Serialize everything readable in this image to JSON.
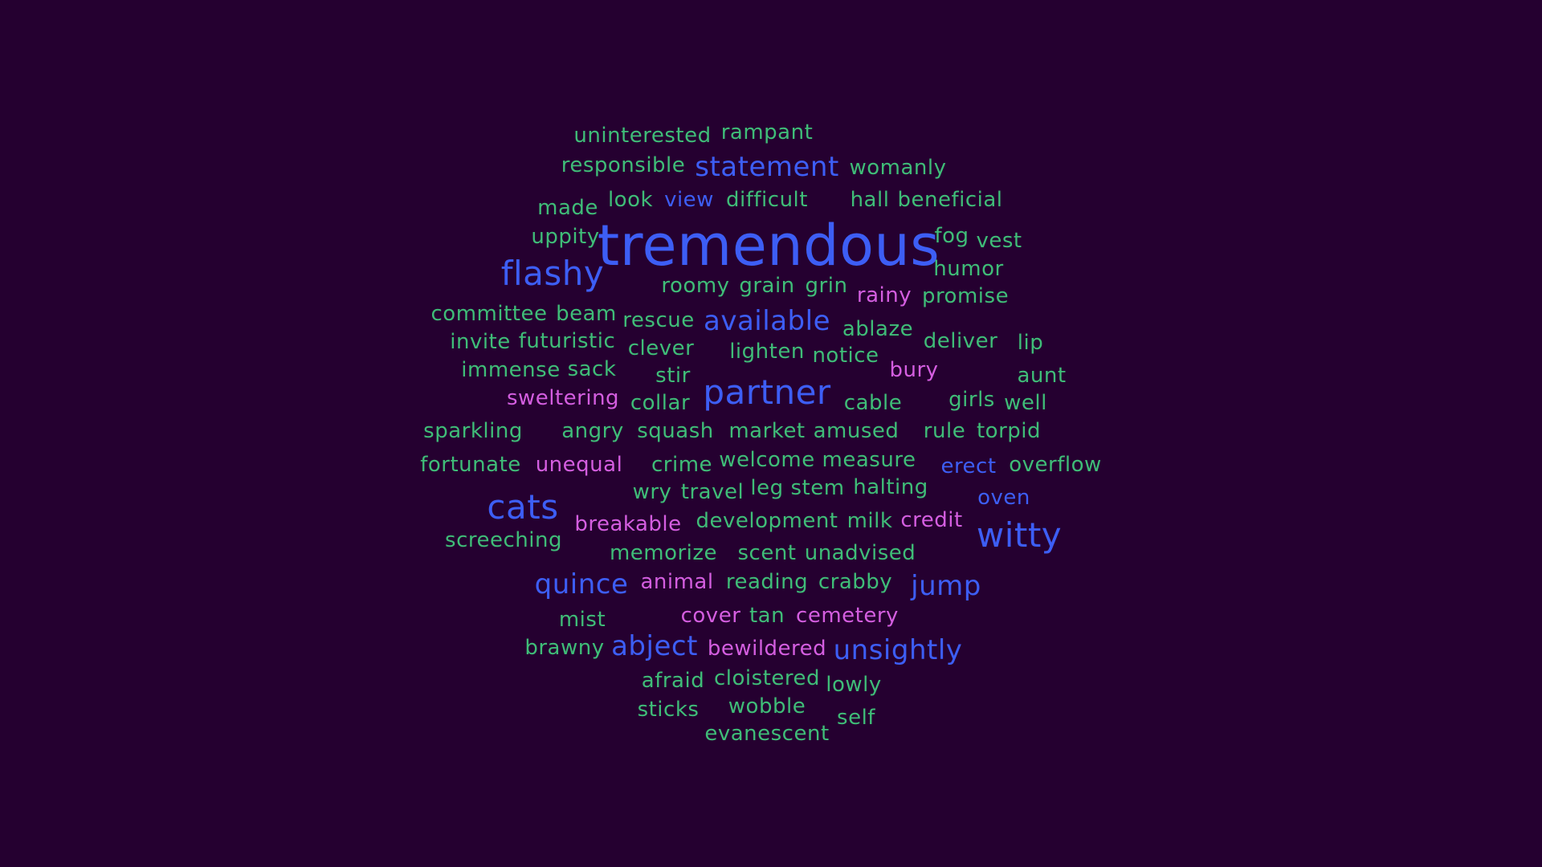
{
  "colors": {
    "background": "#250030",
    "green": "#3fbd78",
    "blue": "#3d5ef5",
    "pink": "#d45ee0"
  },
  "words": [
    {
      "text": "uninterested",
      "color": "green",
      "weight": 2
    },
    {
      "text": "rampant",
      "color": "green",
      "weight": 2
    },
    {
      "text": "responsible",
      "color": "green",
      "weight": 2
    },
    {
      "text": "statement",
      "color": "blue",
      "weight": 3
    },
    {
      "text": "womanly",
      "color": "green",
      "weight": 2
    },
    {
      "text": "made",
      "color": "green",
      "weight": 2
    },
    {
      "text": "look",
      "color": "green",
      "weight": 2
    },
    {
      "text": "view",
      "color": "blue",
      "weight": 2
    },
    {
      "text": "difficult",
      "color": "green",
      "weight": 2
    },
    {
      "text": "hall",
      "color": "green",
      "weight": 2
    },
    {
      "text": "beneficial",
      "color": "green",
      "weight": 2
    },
    {
      "text": "uppity",
      "color": "green",
      "weight": 2
    },
    {
      "text": "tremendous",
      "color": "blue",
      "weight": 6
    },
    {
      "text": "fog",
      "color": "green",
      "weight": 2
    },
    {
      "text": "vest",
      "color": "green",
      "weight": 2
    },
    {
      "text": "flashy",
      "color": "blue",
      "weight": 4
    },
    {
      "text": "humor",
      "color": "green",
      "weight": 2
    },
    {
      "text": "roomy",
      "color": "green",
      "weight": 2
    },
    {
      "text": "grain",
      "color": "green",
      "weight": 2
    },
    {
      "text": "grin",
      "color": "green",
      "weight": 2
    },
    {
      "text": "rainy",
      "color": "pink",
      "weight": 2
    },
    {
      "text": "promise",
      "color": "green",
      "weight": 2
    },
    {
      "text": "committee",
      "color": "green",
      "weight": 2
    },
    {
      "text": "beam",
      "color": "green",
      "weight": 2
    },
    {
      "text": "rescue",
      "color": "green",
      "weight": 2
    },
    {
      "text": "available",
      "color": "blue",
      "weight": 3
    },
    {
      "text": "ablaze",
      "color": "green",
      "weight": 2
    },
    {
      "text": "deliver",
      "color": "green",
      "weight": 2
    },
    {
      "text": "lip",
      "color": "green",
      "weight": 2
    },
    {
      "text": "invite",
      "color": "green",
      "weight": 2
    },
    {
      "text": "futuristic",
      "color": "green",
      "weight": 2
    },
    {
      "text": "clever",
      "color": "green",
      "weight": 2
    },
    {
      "text": "lighten",
      "color": "green",
      "weight": 2
    },
    {
      "text": "notice",
      "color": "green",
      "weight": 2
    },
    {
      "text": "bury",
      "color": "pink",
      "weight": 2
    },
    {
      "text": "aunt",
      "color": "green",
      "weight": 2
    },
    {
      "text": "immense",
      "color": "green",
      "weight": 2
    },
    {
      "text": "sack",
      "color": "green",
      "weight": 2
    },
    {
      "text": "stir",
      "color": "green",
      "weight": 2
    },
    {
      "text": "sweltering",
      "color": "pink",
      "weight": 2
    },
    {
      "text": "collar",
      "color": "green",
      "weight": 2
    },
    {
      "text": "partner",
      "color": "blue",
      "weight": 4
    },
    {
      "text": "cable",
      "color": "green",
      "weight": 2
    },
    {
      "text": "girls",
      "color": "green",
      "weight": 2
    },
    {
      "text": "well",
      "color": "green",
      "weight": 2
    },
    {
      "text": "sparkling",
      "color": "green",
      "weight": 2
    },
    {
      "text": "angry",
      "color": "green",
      "weight": 2
    },
    {
      "text": "squash",
      "color": "green",
      "weight": 2
    },
    {
      "text": "market",
      "color": "green",
      "weight": 2
    },
    {
      "text": "amused",
      "color": "green",
      "weight": 2
    },
    {
      "text": "rule",
      "color": "green",
      "weight": 2
    },
    {
      "text": "torpid",
      "color": "green",
      "weight": 2
    },
    {
      "text": "fortunate",
      "color": "green",
      "weight": 2
    },
    {
      "text": "unequal",
      "color": "pink",
      "weight": 2
    },
    {
      "text": "crime",
      "color": "green",
      "weight": 2
    },
    {
      "text": "welcome",
      "color": "green",
      "weight": 2
    },
    {
      "text": "measure",
      "color": "green",
      "weight": 2
    },
    {
      "text": "erect",
      "color": "blue",
      "weight": 2
    },
    {
      "text": "overflow",
      "color": "green",
      "weight": 2
    },
    {
      "text": "wry",
      "color": "green",
      "weight": 2
    },
    {
      "text": "travel",
      "color": "green",
      "weight": 2
    },
    {
      "text": "leg",
      "color": "green",
      "weight": 2
    },
    {
      "text": "stem",
      "color": "green",
      "weight": 2
    },
    {
      "text": "halting",
      "color": "green",
      "weight": 2
    },
    {
      "text": "oven",
      "color": "blue",
      "weight": 2
    },
    {
      "text": "cats",
      "color": "blue",
      "weight": 4
    },
    {
      "text": "breakable",
      "color": "pink",
      "weight": 2
    },
    {
      "text": "development",
      "color": "green",
      "weight": 2
    },
    {
      "text": "milk",
      "color": "green",
      "weight": 2
    },
    {
      "text": "credit",
      "color": "pink",
      "weight": 2
    },
    {
      "text": "witty",
      "color": "blue",
      "weight": 4
    },
    {
      "text": "screeching",
      "color": "green",
      "weight": 2
    },
    {
      "text": "memorize",
      "color": "green",
      "weight": 2
    },
    {
      "text": "scent",
      "color": "green",
      "weight": 2
    },
    {
      "text": "unadvised",
      "color": "green",
      "weight": 2
    },
    {
      "text": "quince",
      "color": "blue",
      "weight": 3
    },
    {
      "text": "animal",
      "color": "pink",
      "weight": 2
    },
    {
      "text": "reading",
      "color": "green",
      "weight": 2
    },
    {
      "text": "crabby",
      "color": "green",
      "weight": 2
    },
    {
      "text": "jump",
      "color": "blue",
      "weight": 3
    },
    {
      "text": "mist",
      "color": "green",
      "weight": 2
    },
    {
      "text": "cover",
      "color": "pink",
      "weight": 2
    },
    {
      "text": "tan",
      "color": "green",
      "weight": 2
    },
    {
      "text": "cemetery",
      "color": "pink",
      "weight": 2
    },
    {
      "text": "brawny",
      "color": "green",
      "weight": 2
    },
    {
      "text": "abject",
      "color": "blue",
      "weight": 3
    },
    {
      "text": "bewildered",
      "color": "pink",
      "weight": 2
    },
    {
      "text": "unsightly",
      "color": "blue",
      "weight": 3
    },
    {
      "text": "afraid",
      "color": "green",
      "weight": 2
    },
    {
      "text": "cloistered",
      "color": "green",
      "weight": 2
    },
    {
      "text": "lowly",
      "color": "green",
      "weight": 2
    },
    {
      "text": "sticks",
      "color": "green",
      "weight": 2
    },
    {
      "text": "wobble",
      "color": "green",
      "weight": 2
    },
    {
      "text": "self",
      "color": "green",
      "weight": 2
    },
    {
      "text": "evanescent",
      "color": "green",
      "weight": 2
    }
  ]
}
